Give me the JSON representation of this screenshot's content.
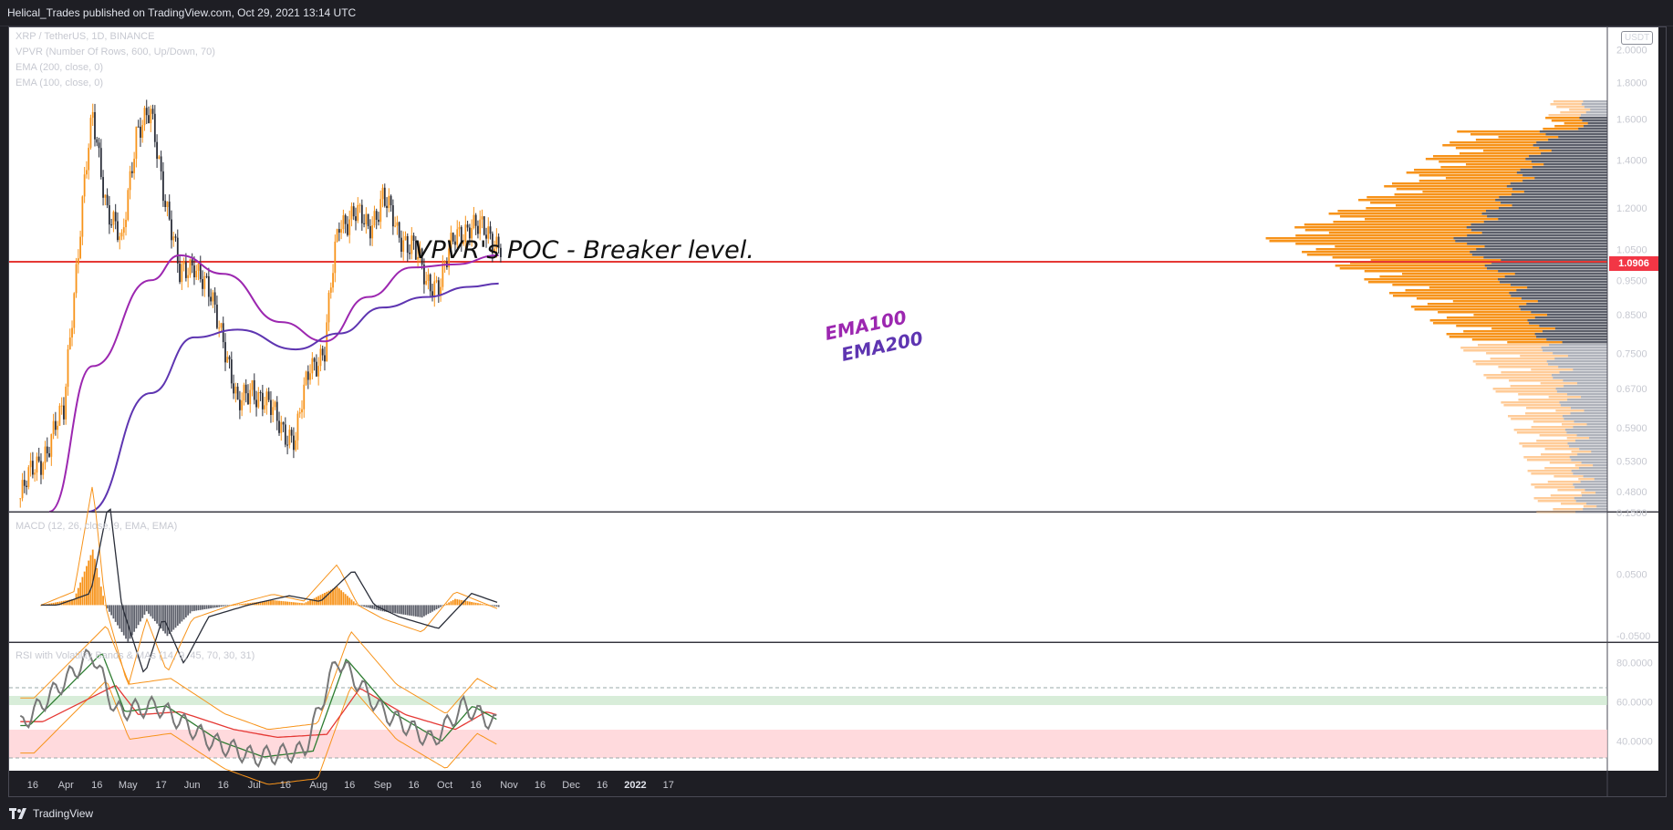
{
  "header": {
    "publisher_text": "Helical_Trades published on TradingView.com, Oct 29, 2021 13:14 UTC"
  },
  "footer": {
    "brand": "TradingView"
  },
  "legend": {
    "symbol": "XRP / TetherUS, 1D, BINANCE",
    "vpvr": "VPVR (Number Of Rows, 600, Up/Down, 70)",
    "ema200": "EMA (200, close, 0)",
    "ema100": "EMA (100, close, 0)"
  },
  "panes": {
    "macd_title": "MACD (12, 26, close, 9, EMA, EMA)",
    "rsi_title": "RSI with Volatility Bands & MAs (14, 9, 45, 70, 30, 31)"
  },
  "price_axis": {
    "currency_badge": "USDT",
    "current_price": "1.0906"
  },
  "colors": {
    "background": "#1e1e24",
    "up_candle": "#f7931a",
    "down_candle": "#2a2e39",
    "ema100": "#9c27b0",
    "ema200": "#5e35b1",
    "poc_line": "#e53935",
    "vpvr_up": "#f7931a",
    "vpvr_down": "#5d606b",
    "macd_line": "#f7931a",
    "signal_line": "#2a2e39"
  },
  "chart_data": [
    {
      "type": "candlestick",
      "title": "XRP / TetherUS, 1D, BINANCE",
      "x_tick_labels": [
        "16",
        "Apr",
        "16",
        "May",
        "17",
        "Jun",
        "16",
        "Jul",
        "16",
        "Aug",
        "16",
        "Sep",
        "16",
        "Oct",
        "16",
        "Nov",
        "16",
        "Dec",
        "16",
        "2022",
        "17"
      ],
      "y_tick_labels": [
        "2.0000",
        "1.8000",
        "1.6000",
        "1.4000",
        "1.2000",
        "1.0500",
        "0.9500",
        "0.8500",
        "0.7500",
        "0.6700",
        "0.5900",
        "0.5300",
        "0.4800"
      ],
      "y_scale": "log",
      "ylim": [
        0.45,
        2.15
      ],
      "annotations": [
        "VPVR's POC - Breaker level.",
        "EMA100",
        "EMA200"
      ],
      "poc_level": 1.0906,
      "series_close_weekly": [
        {
          "date": "2021-03-10",
          "close": 0.47
        },
        {
          "date": "2021-03-17",
          "close": 0.52
        },
        {
          "date": "2021-03-24",
          "close": 0.56
        },
        {
          "date": "2021-03-31",
          "close": 0.62
        },
        {
          "date": "2021-04-07",
          "close": 1.05
        },
        {
          "date": "2021-04-14",
          "close": 1.6
        },
        {
          "date": "2021-04-21",
          "close": 1.2
        },
        {
          "date": "2021-04-28",
          "close": 1.05
        },
        {
          "date": "2021-05-05",
          "close": 1.55
        },
        {
          "date": "2021-05-12",
          "close": 1.6
        },
        {
          "date": "2021-05-19",
          "close": 1.25
        },
        {
          "date": "2021-05-26",
          "close": 0.95
        },
        {
          "date": "2021-06-02",
          "close": 1.02
        },
        {
          "date": "2021-06-09",
          "close": 0.9
        },
        {
          "date": "2021-06-16",
          "close": 0.8
        },
        {
          "date": "2021-06-23",
          "close": 0.62
        },
        {
          "date": "2021-06-30",
          "close": 0.68
        },
        {
          "date": "2021-07-07",
          "close": 0.63
        },
        {
          "date": "2021-07-14",
          "close": 0.6
        },
        {
          "date": "2021-07-21",
          "close": 0.56
        },
        {
          "date": "2021-07-28",
          "close": 0.73
        },
        {
          "date": "2021-08-04",
          "close": 0.75
        },
        {
          "date": "2021-08-11",
          "close": 1.15
        },
        {
          "date": "2021-08-18",
          "close": 1.18
        },
        {
          "date": "2021-08-25",
          "close": 1.12
        },
        {
          "date": "2021-09-01",
          "close": 1.25
        },
        {
          "date": "2021-09-08",
          "close": 1.1
        },
        {
          "date": "2021-09-15",
          "close": 1.08
        },
        {
          "date": "2021-09-22",
          "close": 0.93
        },
        {
          "date": "2021-09-29",
          "close": 0.96
        },
        {
          "date": "2021-10-06",
          "close": 1.08
        },
        {
          "date": "2021-10-13",
          "close": 1.15
        },
        {
          "date": "2021-10-20",
          "close": 1.1
        },
        {
          "date": "2021-10-27",
          "close": 1.08
        }
      ],
      "ema100": [
        {
          "date": "2021-03-24",
          "value": 0.45
        },
        {
          "date": "2021-04-14",
          "value": 0.72
        },
        {
          "date": "2021-05-12",
          "value": 0.95
        },
        {
          "date": "2021-05-26",
          "value": 1.03
        },
        {
          "date": "2021-06-16",
          "value": 0.97
        },
        {
          "date": "2021-07-14",
          "value": 0.83
        },
        {
          "date": "2021-08-04",
          "value": 0.78
        },
        {
          "date": "2021-08-25",
          "value": 0.9
        },
        {
          "date": "2021-09-15",
          "value": 0.99
        },
        {
          "date": "2021-10-06",
          "value": 1.0
        },
        {
          "date": "2021-10-27",
          "value": 1.03
        }
      ],
      "ema200": [
        {
          "date": "2021-04-12",
          "value": 0.45
        },
        {
          "date": "2021-05-12",
          "value": 0.66
        },
        {
          "date": "2021-06-02",
          "value": 0.79
        },
        {
          "date": "2021-06-23",
          "value": 0.81
        },
        {
          "date": "2021-07-21",
          "value": 0.76
        },
        {
          "date": "2021-08-11",
          "value": 0.8
        },
        {
          "date": "2021-09-01",
          "value": 0.87
        },
        {
          "date": "2021-09-22",
          "value": 0.9
        },
        {
          "date": "2021-10-13",
          "value": 0.93
        },
        {
          "date": "2021-10-27",
          "value": 0.94
        }
      ]
    },
    {
      "type": "bar",
      "title": "MACD (12, 26, close, 9, EMA, EMA)",
      "y_tick_labels": [
        "0.1500",
        "0.0500",
        "-0.0500"
      ],
      "ylim": [
        -0.06,
        0.15
      ],
      "histogram": [
        {
          "date": "2021-03-20",
          "value": 0.0
        },
        {
          "date": "2021-04-05",
          "value": 0.01
        },
        {
          "date": "2021-04-14",
          "value": 0.09
        },
        {
          "date": "2021-04-20",
          "value": 0.0
        },
        {
          "date": "2021-05-01",
          "value": -0.06
        },
        {
          "date": "2021-05-10",
          "value": -0.01
        },
        {
          "date": "2021-05-20",
          "value": -0.05
        },
        {
          "date": "2021-06-01",
          "value": -0.01
        },
        {
          "date": "2021-06-20",
          "value": 0.0
        },
        {
          "date": "2021-07-10",
          "value": 0.008
        },
        {
          "date": "2021-07-25",
          "value": 0.003
        },
        {
          "date": "2021-08-10",
          "value": 0.03
        },
        {
          "date": "2021-08-20",
          "value": 0.0
        },
        {
          "date": "2021-09-01",
          "value": -0.01
        },
        {
          "date": "2021-09-20",
          "value": -0.02
        },
        {
          "date": "2021-10-06",
          "value": 0.01
        },
        {
          "date": "2021-10-27",
          "value": -0.003
        }
      ]
    },
    {
      "type": "line",
      "title": "RSI with Volatility Bands & MAs (14, 9, 45, 70, 30, 31)",
      "y_tick_labels": [
        "80.0000",
        "60.0000",
        "40.0000"
      ],
      "ylim": [
        25,
        90
      ],
      "bands": [
        {
          "from": 60,
          "to": 65,
          "color": "green"
        },
        {
          "from": 30,
          "to": 45,
          "color": "red"
        }
      ],
      "rsi": [
        {
          "date": "2021-03-10",
          "value": 48
        },
        {
          "date": "2021-04-14",
          "value": 85
        },
        {
          "date": "2021-04-25",
          "value": 55
        },
        {
          "date": "2021-05-15",
          "value": 58
        },
        {
          "date": "2021-06-10",
          "value": 40
        },
        {
          "date": "2021-07-01",
          "value": 32
        },
        {
          "date": "2021-07-25",
          "value": 35
        },
        {
          "date": "2021-08-10",
          "value": 82
        },
        {
          "date": "2021-09-01",
          "value": 55
        },
        {
          "date": "2021-09-25",
          "value": 40
        },
        {
          "date": "2021-10-10",
          "value": 58
        },
        {
          "date": "2021-10-27",
          "value": 48
        }
      ]
    }
  ]
}
